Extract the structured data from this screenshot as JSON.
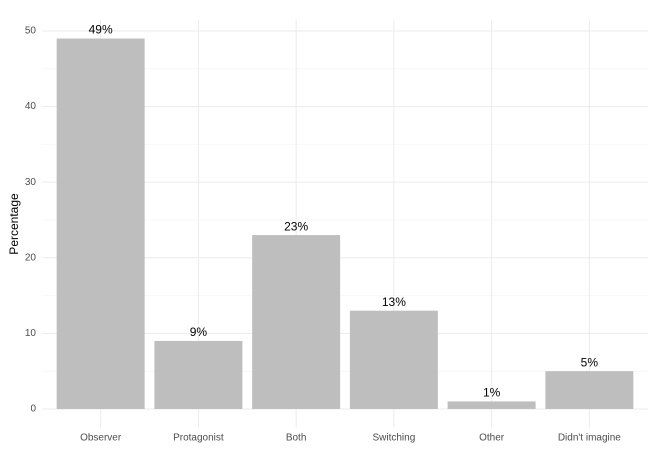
{
  "chart_data": {
    "type": "bar",
    "y_label": "Percentage",
    "categories": [
      "Observer",
      "Protagonist",
      "Both",
      "Switching",
      "Other",
      "Didn't imagine"
    ],
    "values": [
      49,
      9,
      23,
      13,
      1,
      5
    ],
    "value_labels": [
      "49%",
      "9%",
      "23%",
      "13%",
      "1%",
      "5%"
    ],
    "color": "#bebebe",
    "ylim": [
      -2.45,
      51.45
    ],
    "yticks": [
      0,
      10,
      20,
      30,
      40,
      50
    ],
    "minor_yticks": [
      5,
      15,
      25,
      35,
      45
    ],
    "grid": true
  }
}
